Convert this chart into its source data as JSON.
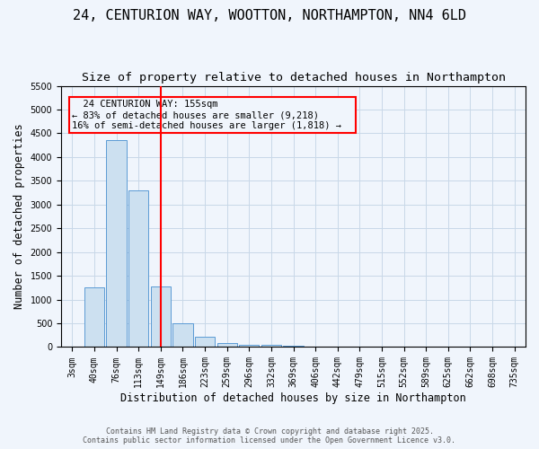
{
  "title": "24, CENTURION WAY, WOOTTON, NORTHAMPTON, NN4 6LD",
  "subtitle": "Size of property relative to detached houses in Northampton",
  "xlabel": "Distribution of detached houses by size in Northampton",
  "ylabel": "Number of detached properties",
  "categories": [
    "3sqm",
    "40sqm",
    "76sqm",
    "113sqm",
    "149sqm",
    "186sqm",
    "223sqm",
    "259sqm",
    "296sqm",
    "332sqm",
    "369sqm",
    "406sqm",
    "442sqm",
    "479sqm",
    "515sqm",
    "552sqm",
    "589sqm",
    "625sqm",
    "662sqm",
    "698sqm",
    "735sqm"
  ],
  "values": [
    0,
    1255,
    4360,
    3300,
    1280,
    500,
    220,
    80,
    50,
    40,
    30,
    0,
    0,
    0,
    0,
    0,
    0,
    0,
    0,
    0,
    0
  ],
  "bar_color": "#cce0f0",
  "bar_edge_color": "#5b9bd5",
  "red_line_index": 4,
  "ylim": [
    0,
    5500
  ],
  "yticks": [
    0,
    500,
    1000,
    1500,
    2000,
    2500,
    3000,
    3500,
    4000,
    4500,
    5000,
    5500
  ],
  "annotation_title": "24 CENTURION WAY: 155sqm",
  "annotation_line1": "← 83% of detached houses are smaller (9,218)",
  "annotation_line2": "16% of semi-detached houses are larger (1,818) →",
  "footer1": "Contains HM Land Registry data © Crown copyright and database right 2025.",
  "footer2": "Contains public sector information licensed under the Open Government Licence v3.0.",
  "bg_color": "#f0f5fc",
  "grid_color": "#c8d8e8",
  "title_fontsize": 11,
  "subtitle_fontsize": 9.5,
  "tick_fontsize": 7,
  "axis_label_fontsize": 8.5,
  "annotation_fontsize": 7.5,
  "footer_fontsize": 6
}
